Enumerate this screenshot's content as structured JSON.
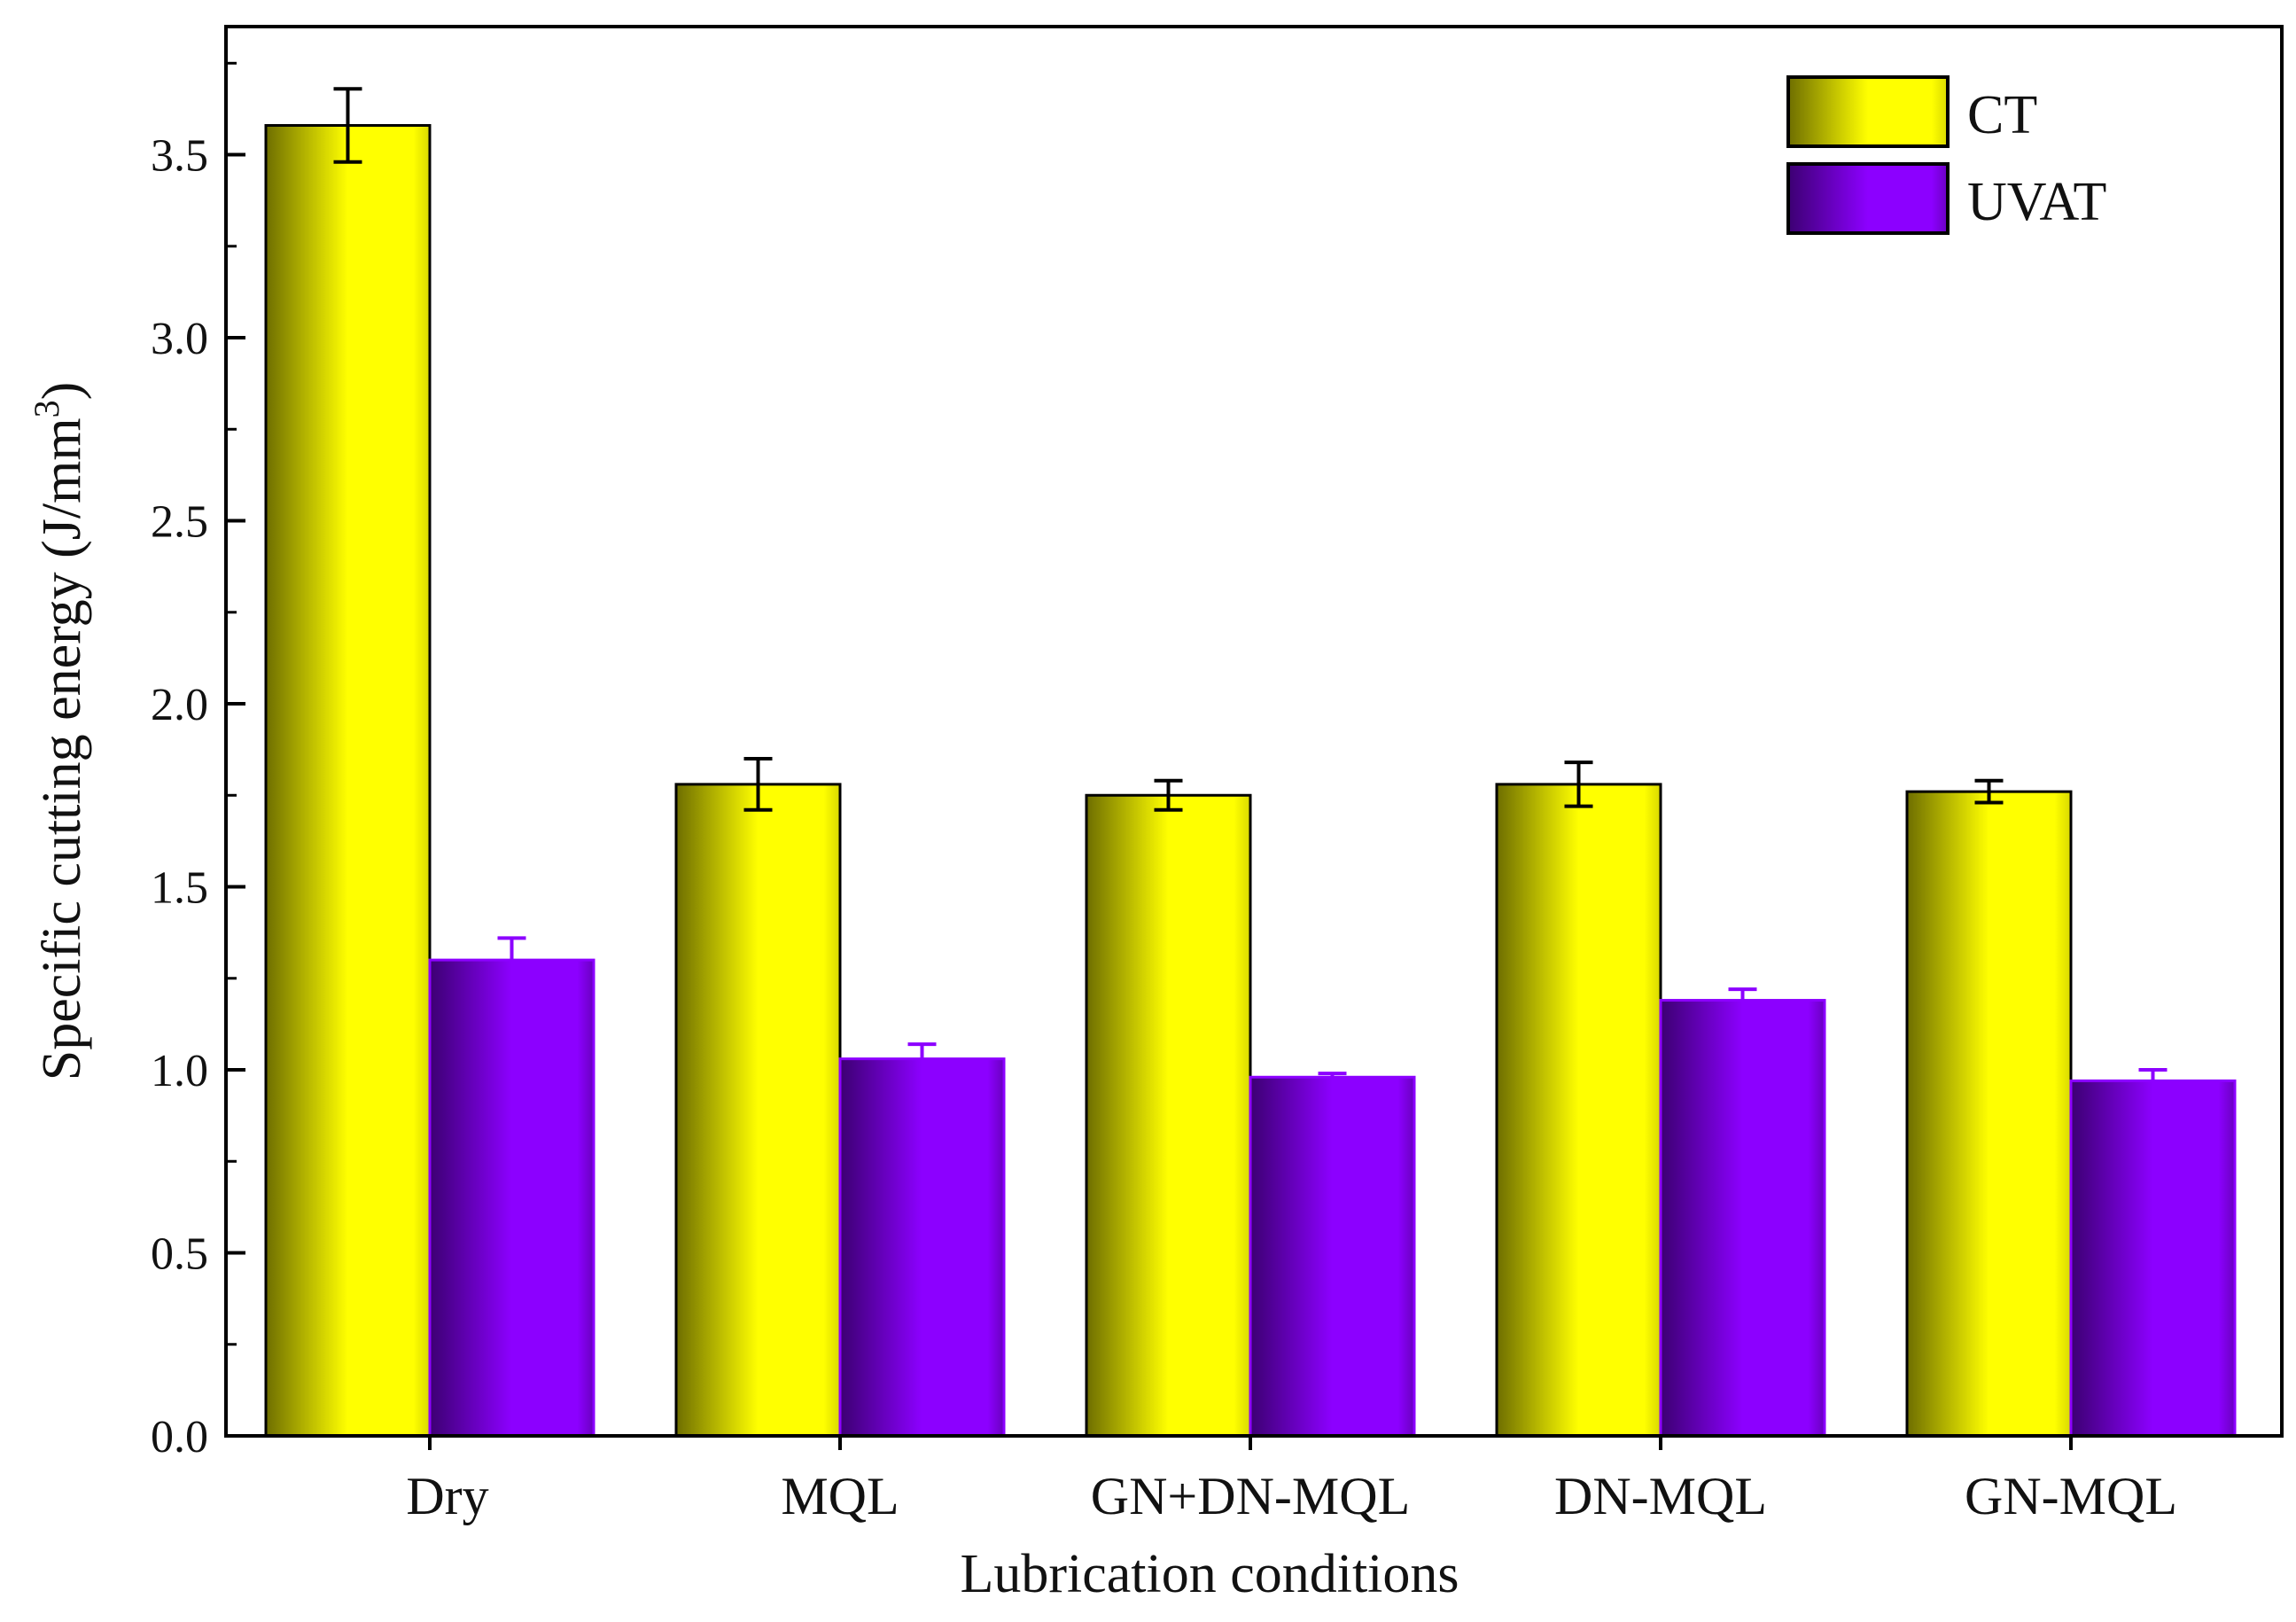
{
  "chart_data": {
    "type": "bar",
    "title": "",
    "xlabel": "Lubrication conditions",
    "ylabel": "Specific cutting energy (J/mm",
    "ylabel_superscript": "3",
    "ylabel_close": ")",
    "ylim": [
      0,
      3.85
    ],
    "yticks": [
      0.0,
      0.5,
      1.0,
      1.5,
      2.0,
      2.5,
      3.0,
      3.5
    ],
    "ytick_labels": [
      "0.0",
      "0.5",
      "1.0",
      "1.5",
      "2.0",
      "2.5",
      "3.0",
      "3.5"
    ],
    "yminor_step": 0.25,
    "grid": false,
    "legend_position": "top-right",
    "categories": [
      "Dry",
      "MQL",
      "GN+DN-MQL",
      "DN-MQL",
      "GN-MQL"
    ],
    "series": [
      {
        "name": "CT",
        "color": "#ffff00",
        "dark_color": "#6e6e00",
        "edge": "#000000",
        "values": [
          3.58,
          1.78,
          1.75,
          1.78,
          1.76
        ],
        "errors": [
          0.1,
          0.07,
          0.04,
          0.06,
          0.03
        ]
      },
      {
        "name": "UVAT",
        "color": "#8c00ff",
        "dark_color": "#3c0072",
        "edge": "#8c00ff",
        "values": [
          1.3,
          1.03,
          0.98,
          1.19,
          0.97
        ],
        "errors": [
          0.06,
          0.04,
          0.01,
          0.03,
          0.03
        ]
      }
    ]
  }
}
